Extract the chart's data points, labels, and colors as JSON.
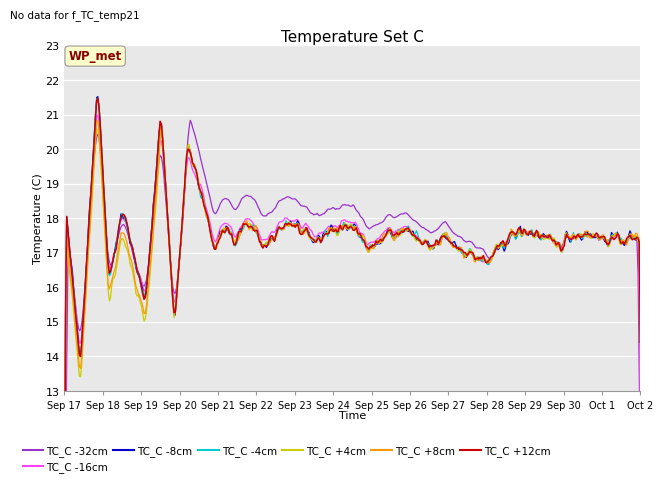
{
  "title": "Temperature Set C",
  "subtitle": "No data for f_TC_temp21",
  "xlabel": "Time",
  "ylabel": "Temperature (C)",
  "ylim": [
    13.0,
    23.0
  ],
  "yticks": [
    13.0,
    14.0,
    15.0,
    16.0,
    17.0,
    18.0,
    19.0,
    20.0,
    21.0,
    22.0,
    23.0
  ],
  "fig_bg": "#ffffff",
  "plot_bg": "#e8e8e8",
  "wp_met_label": "WP_met",
  "series_colors": {
    "TC_C -32cm": "#9933cc",
    "TC_C -16cm": "#ff44ff",
    "TC_C -8cm": "#0000cc",
    "TC_C -4cm": "#00cccc",
    "TC_C +4cm": "#cccc00",
    "TC_C +8cm": "#ff9900",
    "TC_C +12cm": "#cc0000"
  },
  "xtick_labels": [
    "Sep 17",
    "Sep 18",
    "Sep 19",
    "Sep 20",
    "Sep 21",
    "Sep 22",
    "Sep 23",
    "Sep 24",
    "Sep 25",
    "Sep 26",
    "Sep 27",
    "Sep 28",
    "Sep 29",
    "Sep 30",
    "Oct 1",
    "Oct 2"
  ],
  "n_points": 500
}
